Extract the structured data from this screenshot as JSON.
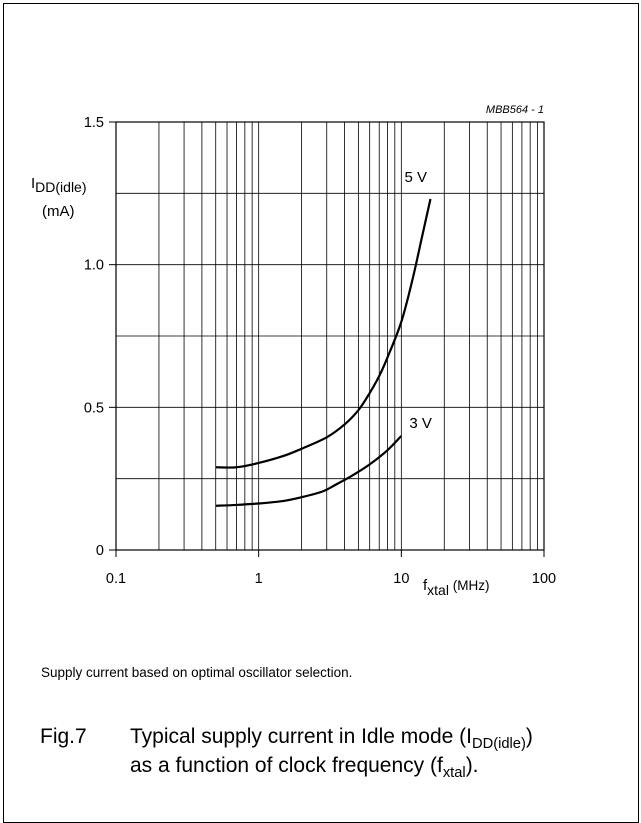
{
  "figure_code": "MBB564 - 1",
  "note": "Supply current based on optimal oscillator selection.",
  "caption": {
    "number": "Fig.7",
    "line1_text": "Typical supply current in Idle mode (I",
    "line1_sub": "DD(idle)",
    "line1_end": ")",
    "line2_text": "as a function of clock frequency (f",
    "line2_sub": "xtal",
    "line2_end": ")."
  },
  "chart_data": {
    "type": "line",
    "x_scale": "log",
    "xlim": [
      0.1,
      100
    ],
    "ylim": [
      0,
      1.5
    ],
    "ylabel_main": "I",
    "ylabel_sub": "DD(idle)",
    "ylabel_unit": "(mA)",
    "xlabel_main": "f",
    "xlabel_sub": "xtal",
    "xlabel_unit": " (MHz)",
    "x_ticks": [
      {
        "value": 0.1,
        "label": "0.1"
      },
      {
        "value": 1,
        "label": "1"
      },
      {
        "value": 10,
        "label": "10"
      },
      {
        "value": 100,
        "label": "100"
      }
    ],
    "y_ticks": [
      {
        "value": 0,
        "label": "0"
      },
      {
        "value": 0.5,
        "label": "0.5"
      },
      {
        "value": 1.0,
        "label": "1.0"
      },
      {
        "value": 1.5,
        "label": "1.5"
      }
    ],
    "y_grid": [
      0.25,
      0.5,
      0.75,
      1.0,
      1.25,
      1.5
    ],
    "grid": true,
    "series": [
      {
        "name": "5 V",
        "color": "#000000",
        "points": [
          [
            0.5,
            0.29
          ],
          [
            0.7,
            0.29
          ],
          [
            1,
            0.305
          ],
          [
            1.5,
            0.33
          ],
          [
            2,
            0.355
          ],
          [
            3,
            0.395
          ],
          [
            4,
            0.44
          ],
          [
            5,
            0.49
          ],
          [
            6,
            0.55
          ],
          [
            7,
            0.61
          ],
          [
            8,
            0.675
          ],
          [
            10,
            0.8
          ],
          [
            12,
            0.95
          ],
          [
            14,
            1.1
          ],
          [
            16,
            1.23
          ]
        ]
      },
      {
        "name": "3 V",
        "color": "#000000",
        "points": [
          [
            0.5,
            0.155
          ],
          [
            0.7,
            0.158
          ],
          [
            1,
            0.163
          ],
          [
            1.5,
            0.172
          ],
          [
            2,
            0.185
          ],
          [
            2.8,
            0.205
          ],
          [
            3.5,
            0.23
          ],
          [
            4.5,
            0.26
          ],
          [
            6,
            0.3
          ],
          [
            8,
            0.35
          ],
          [
            10,
            0.4
          ]
        ]
      }
    ]
  }
}
